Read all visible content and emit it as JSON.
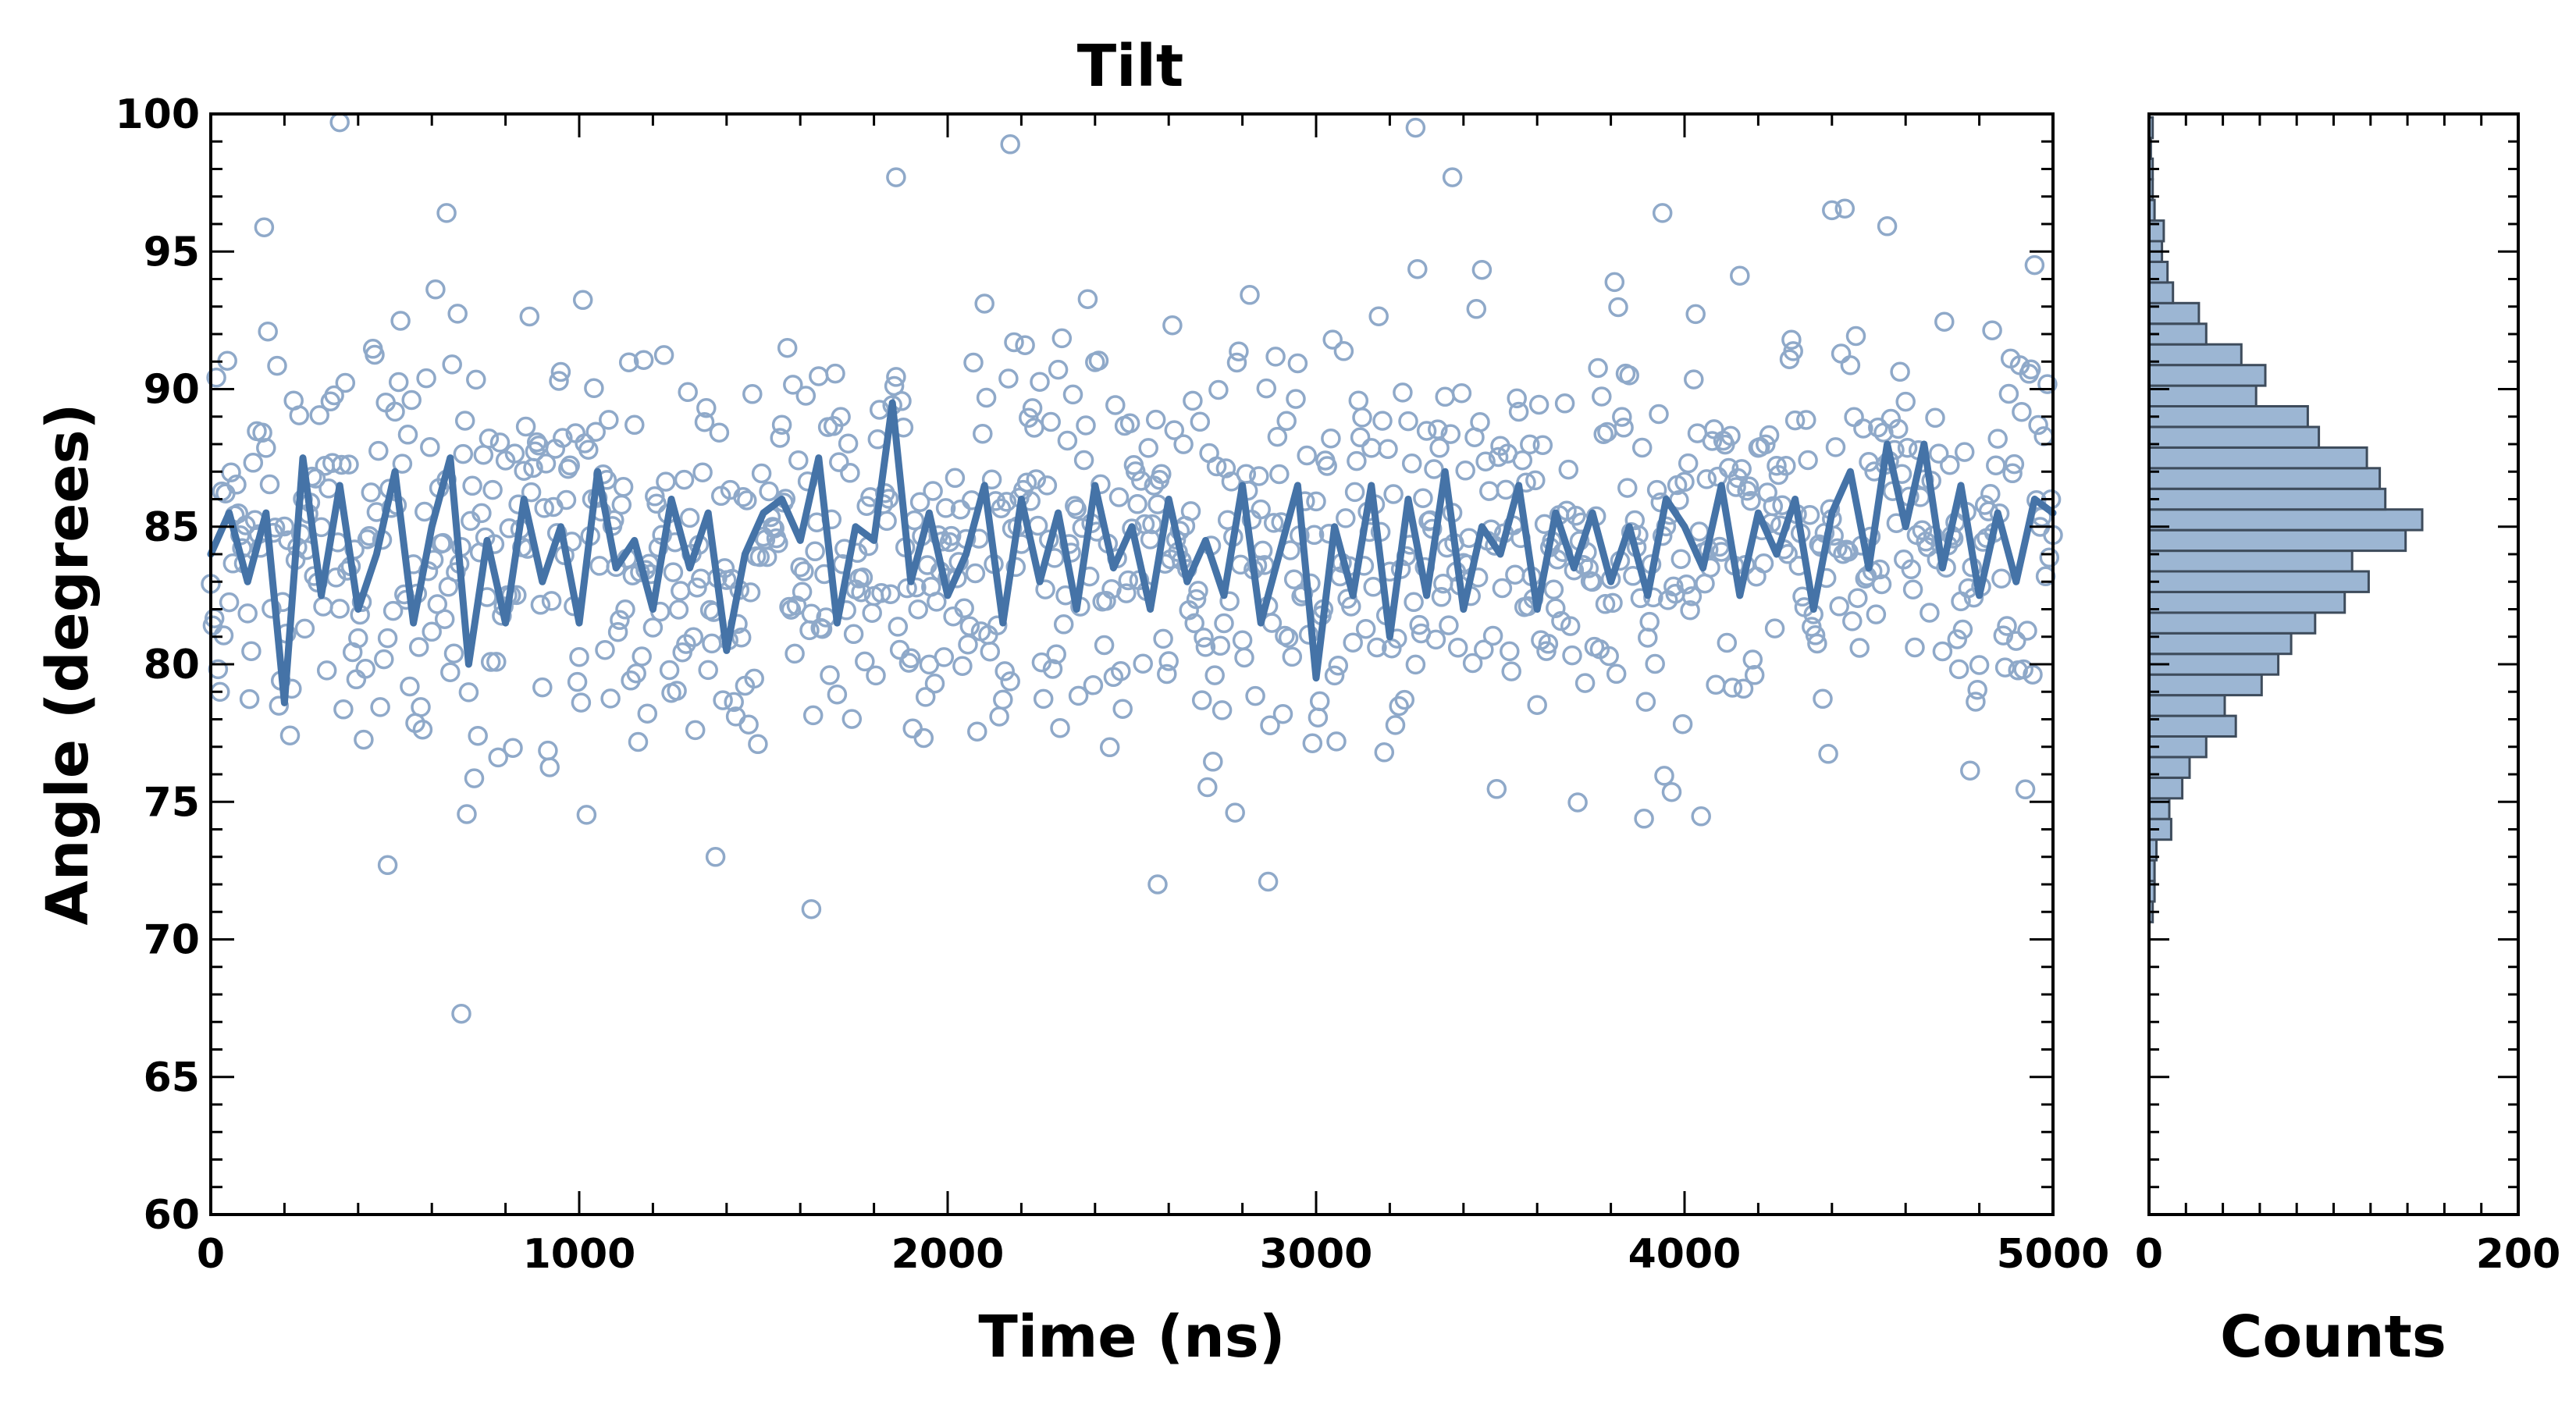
{
  "colors": {
    "scatter": "#8fa9c9",
    "line": "#4573a7",
    "bar_fill": "#9cb6d3",
    "bar_edge": "#3e4c5c",
    "axes": "#000000"
  },
  "chart_data": [
    {
      "type": "scatter",
      "title": "Tilt",
      "xlabel": "Time (ns)",
      "ylabel": "Angle (degrees)",
      "xlim": [
        0,
        5000
      ],
      "ylim": [
        60,
        100
      ],
      "xticks": [
        0,
        1000,
        2000,
        3000,
        4000,
        5000
      ],
      "yticks": [
        60,
        65,
        70,
        75,
        80,
        85,
        90,
        95,
        100
      ],
      "grid": false,
      "series": [
        {
          "kind": "scatter-points",
          "marker": "open-circle",
          "sample_interval_ns": 5,
          "mean": 84.4,
          "std_dev": 3.7,
          "min_observed": 67.3,
          "max_observed": 99.8,
          "notable_points": [
            {
              "x": 680,
              "y": 67.3
            },
            {
              "x": 1630,
              "y": 71.1
            },
            {
              "x": 2570,
              "y": 72.0
            },
            {
              "x": 2870,
              "y": 72.1
            },
            {
              "x": 480,
              "y": 72.7
            },
            {
              "x": 350,
              "y": 99.7
            },
            {
              "x": 2170,
              "y": 98.9
            },
            {
              "x": 3270,
              "y": 99.5
            },
            {
              "x": 1860,
              "y": 97.7
            },
            {
              "x": 3370,
              "y": 97.7
            },
            {
              "x": 4400,
              "y": 96.5
            },
            {
              "x": 3940,
              "y": 96.4
            },
            {
              "x": 640,
              "y": 96.4
            }
          ]
        },
        {
          "kind": "running-average-line",
          "points": [
            [
              0,
              84.0
            ],
            [
              50,
              85.5
            ],
            [
              100,
              83.0
            ],
            [
              150,
              85.5
            ],
            [
              200,
              78.6
            ],
            [
              250,
              87.5
            ],
            [
              300,
              82.5
            ],
            [
              350,
              86.5
            ],
            [
              400,
              82.0
            ],
            [
              450,
              84.0
            ],
            [
              500,
              87.0
            ],
            [
              550,
              81.5
            ],
            [
              600,
              85.0
            ],
            [
              650,
              87.5
            ],
            [
              700,
              80.0
            ],
            [
              750,
              84.5
            ],
            [
              800,
              81.5
            ],
            [
              850,
              86.0
            ],
            [
              900,
              83.0
            ],
            [
              950,
              85.0
            ],
            [
              1000,
              81.5
            ],
            [
              1050,
              87.0
            ],
            [
              1100,
              83.5
            ],
            [
              1150,
              84.5
            ],
            [
              1200,
              82.0
            ],
            [
              1250,
              86.0
            ],
            [
              1300,
              83.5
            ],
            [
              1350,
              85.5
            ],
            [
              1400,
              80.5
            ],
            [
              1450,
              84.0
            ],
            [
              1500,
              85.5
            ],
            [
              1550,
              86.0
            ],
            [
              1600,
              84.5
            ],
            [
              1650,
              87.5
            ],
            [
              1700,
              81.5
            ],
            [
              1750,
              85.0
            ],
            [
              1800,
              84.5
            ],
            [
              1850,
              89.5
            ],
            [
              1900,
              83.0
            ],
            [
              1950,
              85.5
            ],
            [
              2000,
              82.5
            ],
            [
              2050,
              84.0
            ],
            [
              2100,
              86.5
            ],
            [
              2150,
              81.5
            ],
            [
              2200,
              86.0
            ],
            [
              2250,
              83.0
            ],
            [
              2300,
              85.5
            ],
            [
              2350,
              82.0
            ],
            [
              2400,
              86.5
            ],
            [
              2450,
              83.5
            ],
            [
              2500,
              85.0
            ],
            [
              2550,
              82.0
            ],
            [
              2600,
              86.0
            ],
            [
              2650,
              83.0
            ],
            [
              2700,
              84.5
            ],
            [
              2750,
              82.5
            ],
            [
              2800,
              86.5
            ],
            [
              2850,
              81.5
            ],
            [
              2900,
              84.0
            ],
            [
              2950,
              86.5
            ],
            [
              3000,
              79.5
            ],
            [
              3050,
              85.0
            ],
            [
              3100,
              82.5
            ],
            [
              3150,
              86.5
            ],
            [
              3200,
              81.0
            ],
            [
              3250,
              86.0
            ],
            [
              3300,
              82.5
            ],
            [
              3350,
              87.0
            ],
            [
              3400,
              82.0
            ],
            [
              3450,
              85.0
            ],
            [
              3500,
              84.0
            ],
            [
              3550,
              86.5
            ],
            [
              3600,
              82.0
            ],
            [
              3650,
              85.5
            ],
            [
              3700,
              83.5
            ],
            [
              3750,
              85.5
            ],
            [
              3800,
              83.0
            ],
            [
              3850,
              85.0
            ],
            [
              3900,
              82.5
            ],
            [
              3950,
              86.0
            ],
            [
              4000,
              85.0
            ],
            [
              4050,
              83.5
            ],
            [
              4100,
              86.5
            ],
            [
              4150,
              82.5
            ],
            [
              4200,
              85.5
            ],
            [
              4250,
              84.0
            ],
            [
              4300,
              86.0
            ],
            [
              4350,
              82.0
            ],
            [
              4400,
              85.5
            ],
            [
              4450,
              87.0
            ],
            [
              4500,
              83.5
            ],
            [
              4550,
              88.0
            ],
            [
              4600,
              85.0
            ],
            [
              4650,
              88.0
            ],
            [
              4700,
              83.5
            ],
            [
              4750,
              86.5
            ],
            [
              4800,
              82.5
            ],
            [
              4850,
              85.5
            ],
            [
              4900,
              83.0
            ],
            [
              4950,
              86.0
            ],
            [
              5000,
              85.5
            ]
          ]
        }
      ]
    },
    {
      "type": "bar",
      "orientation": "horizontal",
      "xlabel": "Counts",
      "xlim": [
        0,
        200
      ],
      "xticks": [
        0,
        200
      ],
      "ylim": [
        60,
        100
      ],
      "bin_width": 0.75,
      "bins": [
        {
          "y": 71.0,
          "count": 2
        },
        {
          "y": 71.75,
          "count": 3
        },
        {
          "y": 72.5,
          "count": 3
        },
        {
          "y": 73.25,
          "count": 4
        },
        {
          "y": 74.0,
          "count": 12
        },
        {
          "y": 74.75,
          "count": 11
        },
        {
          "y": 75.5,
          "count": 18
        },
        {
          "y": 76.25,
          "count": 22
        },
        {
          "y": 77.0,
          "count": 31
        },
        {
          "y": 77.75,
          "count": 47
        },
        {
          "y": 78.5,
          "count": 41
        },
        {
          "y": 79.25,
          "count": 61
        },
        {
          "y": 80.0,
          "count": 70
        },
        {
          "y": 80.75,
          "count": 77
        },
        {
          "y": 81.5,
          "count": 90
        },
        {
          "y": 82.25,
          "count": 106
        },
        {
          "y": 83.0,
          "count": 119
        },
        {
          "y": 83.75,
          "count": 110
        },
        {
          "y": 84.5,
          "count": 139
        },
        {
          "y": 85.25,
          "count": 148
        },
        {
          "y": 86.0,
          "count": 128
        },
        {
          "y": 86.75,
          "count": 125
        },
        {
          "y": 87.5,
          "count": 118
        },
        {
          "y": 88.25,
          "count": 92
        },
        {
          "y": 89.0,
          "count": 86
        },
        {
          "y": 89.75,
          "count": 58
        },
        {
          "y": 90.5,
          "count": 63
        },
        {
          "y": 91.25,
          "count": 50
        },
        {
          "y": 92.0,
          "count": 31
        },
        {
          "y": 92.75,
          "count": 27
        },
        {
          "y": 93.5,
          "count": 13
        },
        {
          "y": 94.25,
          "count": 10
        },
        {
          "y": 95.0,
          "count": 7
        },
        {
          "y": 95.75,
          "count": 8
        },
        {
          "y": 96.5,
          "count": 3
        },
        {
          "y": 97.25,
          "count": 2
        },
        {
          "y": 98.0,
          "count": 2
        },
        {
          "y": 98.75,
          "count": 1
        },
        {
          "y": 99.5,
          "count": 2
        }
      ]
    }
  ]
}
